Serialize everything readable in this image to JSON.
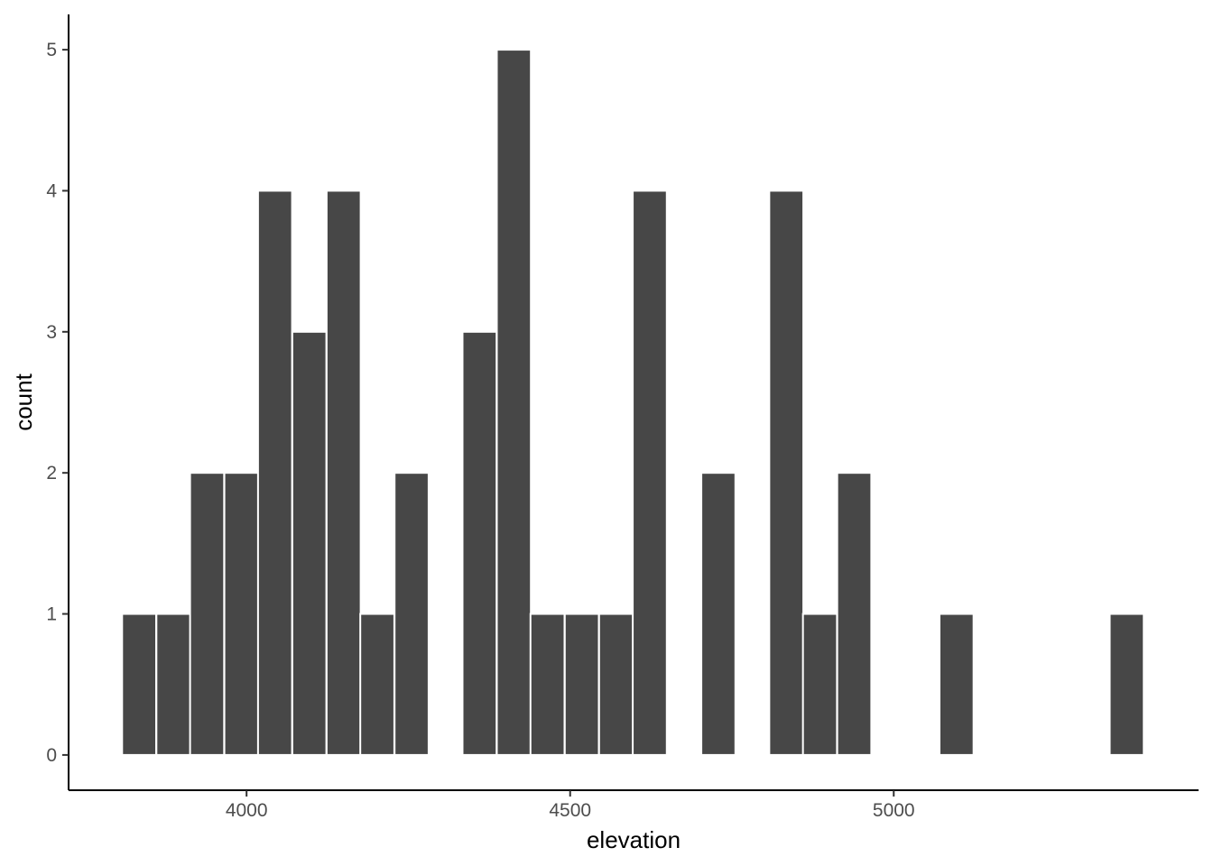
{
  "chart_data": {
    "type": "bar",
    "title": "",
    "xlabel": "elevation",
    "ylabel": "count",
    "bin_width": 52.6,
    "bins": [
      {
        "center": 3834,
        "count": 1
      },
      {
        "center": 3887,
        "count": 1
      },
      {
        "center": 3939,
        "count": 2
      },
      {
        "center": 3992,
        "count": 2
      },
      {
        "center": 4044,
        "count": 4
      },
      {
        "center": 4097,
        "count": 3
      },
      {
        "center": 4150,
        "count": 4
      },
      {
        "center": 4202,
        "count": 1
      },
      {
        "center": 4255,
        "count": 2
      },
      {
        "center": 4360,
        "count": 3
      },
      {
        "center": 4413,
        "count": 5
      },
      {
        "center": 4465,
        "count": 1
      },
      {
        "center": 4518,
        "count": 1
      },
      {
        "center": 4571,
        "count": 1
      },
      {
        "center": 4623,
        "count": 4
      },
      {
        "center": 4729,
        "count": 2
      },
      {
        "center": 4834,
        "count": 4
      },
      {
        "center": 4886,
        "count": 1
      },
      {
        "center": 4939,
        "count": 2
      },
      {
        "center": 5097,
        "count": 1
      },
      {
        "center": 5360,
        "count": 1
      }
    ],
    "xlim": [
      3725,
      5471
    ],
    "ylim": [
      -0.25,
      5.25
    ],
    "x_ticks": [
      4000,
      4500,
      5000
    ],
    "x_tick_labels": [
      "4000",
      "4500",
      "5000"
    ],
    "y_ticks": [
      0,
      1,
      2,
      3,
      4,
      5
    ],
    "y_tick_labels": [
      "0",
      "1",
      "2",
      "3",
      "4",
      "5"
    ],
    "bar_color": "#474747",
    "bar_outline_color": "#ffffff",
    "grid": false
  }
}
